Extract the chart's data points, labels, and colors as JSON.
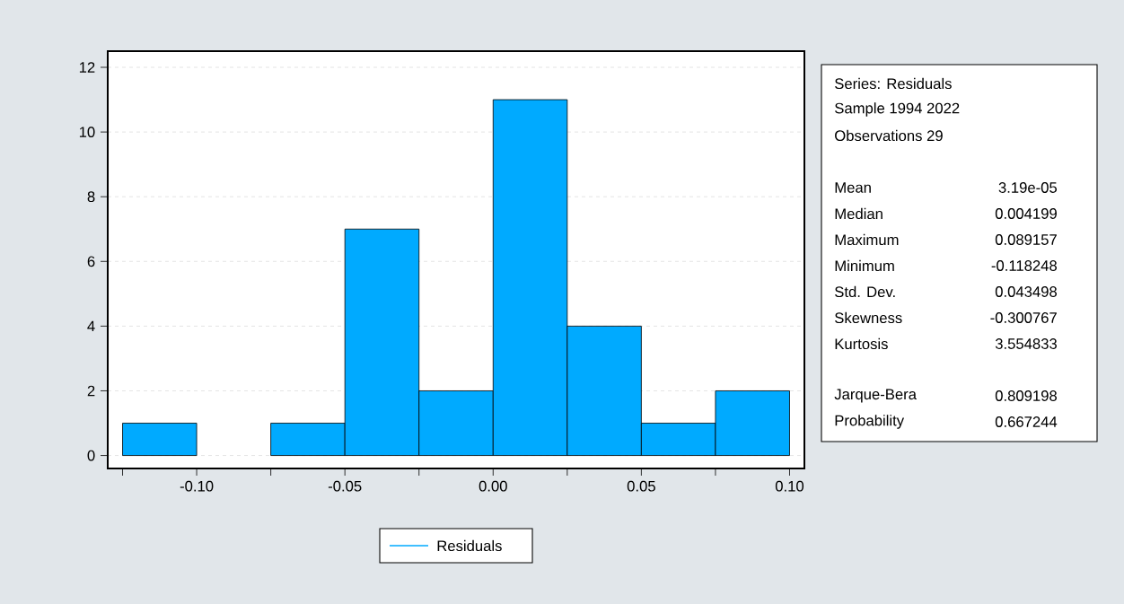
{
  "chart_data": {
    "type": "histogram",
    "bins": [
      -0.125,
      -0.1,
      -0.075,
      -0.05,
      -0.025,
      0.0,
      0.025,
      0.05,
      0.075,
      0.1
    ],
    "series": [
      {
        "name": "Residuals",
        "color": "#00aaff",
        "values": [
          1,
          0,
          1,
          7,
          2,
          11,
          4,
          1,
          2
        ]
      }
    ],
    "xlim": [
      -0.13,
      0.105
    ],
    "ylim": [
      -0.4,
      12.5
    ],
    "xticks": [
      {
        "value": -0.125,
        "label": null
      },
      {
        "value": -0.1,
        "label": "-0.10"
      },
      {
        "value": -0.075,
        "label": null
      },
      {
        "value": -0.05,
        "label": "-0.05"
      },
      {
        "value": -0.025,
        "label": null
      },
      {
        "value": 0.0,
        "label": "0.00"
      },
      {
        "value": 0.025,
        "label": null
      },
      {
        "value": 0.05,
        "label": "0.05"
      },
      {
        "value": 0.075,
        "label": null
      },
      {
        "value": 0.1,
        "label": "0.10"
      }
    ],
    "yticks": [
      0,
      2,
      4,
      6,
      8,
      10,
      12
    ],
    "grid": "y",
    "legend": "bottom",
    "annotations": [
      "Series: Residuals",
      "Sample 1994 2022",
      "Observations 29",
      "Mean",
      "3.19e-05",
      "Median",
      "0.004199",
      "Maximum",
      "0.089157",
      "Minimum",
      "-0.118248",
      "Std. Dev.",
      "0.043498",
      "Skewness",
      "-0.300767",
      "Kurtosis",
      "3.554833",
      "Jarque-Bera",
      "0.809198",
      "Probability",
      "0.667244"
    ]
  }
}
